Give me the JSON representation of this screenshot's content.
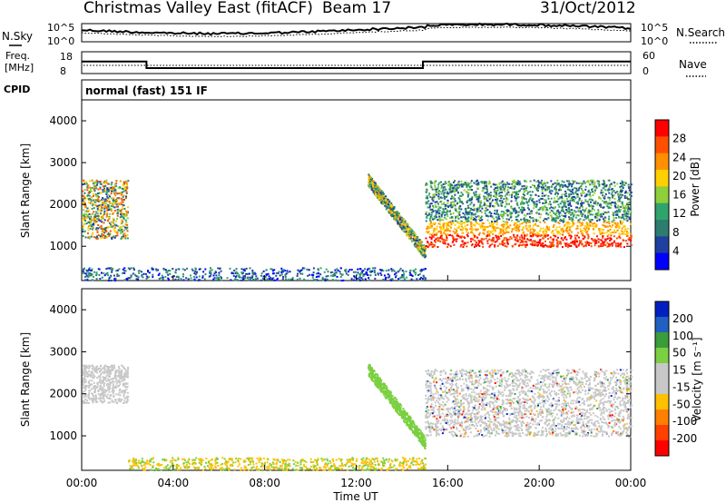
{
  "header": {
    "title": "Christmas Valley East (fitACF)",
    "beam": "Beam 17",
    "date": "31/Oct/2012"
  },
  "chart_data": [
    {
      "type": "line",
      "panel": "noise",
      "left_label": "N.Sky",
      "right_label": "N.Search",
      "left_ticks": [
        "10^5",
        "10^0"
      ],
      "right_ticks": [
        "10^5",
        "10^0"
      ]
    },
    {
      "type": "line",
      "panel": "frequency",
      "left_label": "Freq. [MHz]",
      "right_label": "Nave",
      "left_ticks": [
        "18",
        "8"
      ],
      "right_ticks": [
        "60",
        "0"
      ],
      "series": [
        {
          "name": "Freq.",
          "x": [
            "00:00",
            "02:50",
            "02:50",
            "14:55",
            "14:55",
            "24:00"
          ],
          "values": [
            13.5,
            13.5,
            10.5,
            10.5,
            13.5,
            13.5
          ]
        }
      ]
    },
    {
      "type": "heatmap",
      "panel": "power",
      "mode_label": "CPID",
      "mode": "normal (fast) 151 IF",
      "ylabel": "Slant Range [km]",
      "yticks": [
        "4000",
        "3000",
        "2000",
        "1000"
      ],
      "ylim": [
        180,
        4500
      ],
      "colorbar_label": "Power [dB]",
      "colorbar_ticks": [
        "28",
        "24",
        "20",
        "16",
        "12",
        "8",
        "4"
      ],
      "colorbar_colors": [
        "#ff0000",
        "#ff5000",
        "#ff9000",
        "#ffd000",
        "#8ecf3c",
        "#2fa36b",
        "#2d7d6e",
        "#2040a0",
        "#0000ff"
      ]
    },
    {
      "type": "heatmap",
      "panel": "velocity",
      "ylabel": "Slant Range [km]",
      "yticks": [
        "4000",
        "3000",
        "2000",
        "1000"
      ],
      "ylim": [
        180,
        4500
      ],
      "colorbar_label": "Velocity [m s⁻¹]",
      "colorbar_ticks": [
        "200",
        "100",
        "50",
        "15",
        "-15",
        "-50",
        "-100",
        "-200"
      ],
      "colorbar_colors": [
        "#0020c0",
        "#2060c0",
        "#3a9c3a",
        "#7ad040",
        "#c8c8c8",
        "#c8c8c8",
        "#ffc000",
        "#ff8000",
        "#ff4000",
        "#ff0000"
      ]
    }
  ],
  "xaxis": {
    "label": "Time UT",
    "ticks": [
      "00:00",
      "04:00",
      "08:00",
      "12:00",
      "16:00",
      "20:00",
      "00:00"
    ],
    "range_hours": [
      0,
      24
    ]
  }
}
